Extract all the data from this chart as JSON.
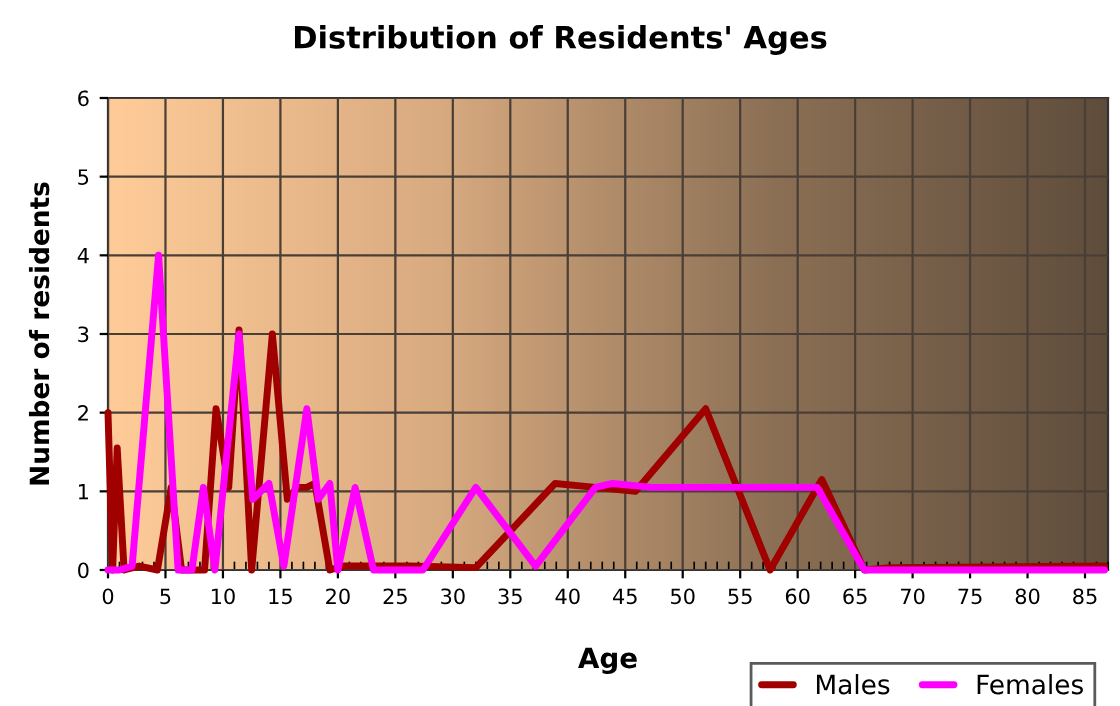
{
  "chart_data": {
    "type": "line",
    "title": "Distribution of Residents' Ages",
    "xlabel": "Age",
    "ylabel": "Number of residents",
    "xlim": [
      0,
      87
    ],
    "xticks": [
      0,
      5,
      10,
      15,
      20,
      25,
      30,
      35,
      40,
      45,
      50,
      55,
      60,
      65,
      70,
      75,
      80,
      85
    ],
    "ylim": [
      0,
      6
    ],
    "yticks": [
      0,
      1,
      2,
      3,
      4,
      5,
      6
    ],
    "grid": true,
    "legend": "bottom right",
    "marker": "none",
    "line_style": "solid",
    "series": [
      {
        "name": "Males",
        "color": "#a00000",
        "x": [
          0,
          0.4,
          0.8,
          1.4,
          2.7,
          4.3,
          5.5,
          6.4,
          8.4,
          9.4,
          10.5,
          11.4,
          12.5,
          14.3,
          15.6,
          16.5,
          17.3,
          18,
          19.3,
          20.5,
          26.3,
          32,
          38.9,
          42.4,
          45.9,
          52,
          57.6,
          62.1,
          65.8,
          68,
          86.7
        ],
        "values": [
          2,
          0,
          1.55,
          0,
          0.05,
          0,
          1.05,
          0,
          0,
          2.05,
          1.05,
          3.05,
          0,
          3,
          0.9,
          1.05,
          1.05,
          1.1,
          0,
          0.05,
          0.05,
          0.03,
          1.1,
          1.05,
          1,
          2.05,
          0,
          1.15,
          0,
          0.03,
          0.05
        ]
      },
      {
        "name": "Females",
        "color": "#ff00ff",
        "x": [
          0,
          1,
          2.1,
          4.4,
          6.1,
          7.3,
          8.3,
          9.3,
          11.4,
          12.6,
          14,
          15.3,
          17.3,
          18.3,
          19.3,
          20,
          21.5,
          23.1,
          27.4,
          32,
          37.2,
          42.4,
          43.9,
          47.3,
          61.7,
          65.8,
          86.7
        ],
        "values": [
          0,
          0,
          0.05,
          4,
          0,
          0,
          1.05,
          0,
          3,
          0.9,
          1.1,
          0.05,
          2.05,
          0.9,
          1.1,
          0,
          1.05,
          0,
          0,
          1.05,
          0.05,
          1.05,
          1.1,
          1.05,
          1.05,
          0,
          0
        ]
      }
    ]
  }
}
